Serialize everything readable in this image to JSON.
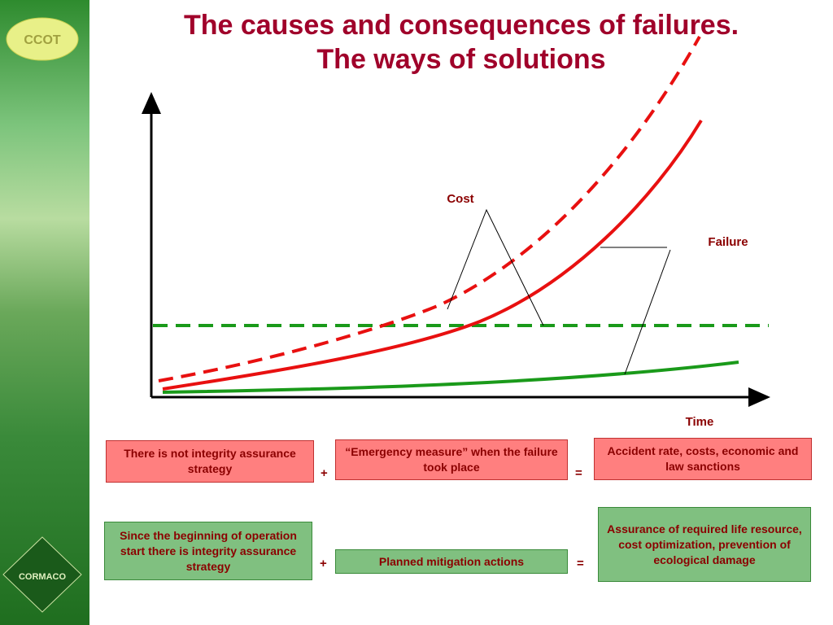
{
  "title": {
    "line1": "The causes and consequences of failures.",
    "line2": "The ways of solutions"
  },
  "logos": {
    "top": "CCOT",
    "bottom": "CORMACO"
  },
  "graph": {
    "cost_label": "Cost",
    "failure_label": "Failure",
    "x_axis_label": "Time"
  },
  "rows": [
    {
      "cause": "There is not integrity assurance strategy",
      "plus": "+",
      "action": "“Emergency measure” when the failure took place",
      "equals": "=",
      "result": "Accident rate, costs, economic and law sanctions"
    },
    {
      "cause": "Since the beginning of operation start there is integrity assurance strategy",
      "plus": "+",
      "action": "Planned mitigation actions",
      "equals": "=",
      "result": "Assurance of required life resource, cost optimization, prevention of ecological damage"
    }
  ]
}
